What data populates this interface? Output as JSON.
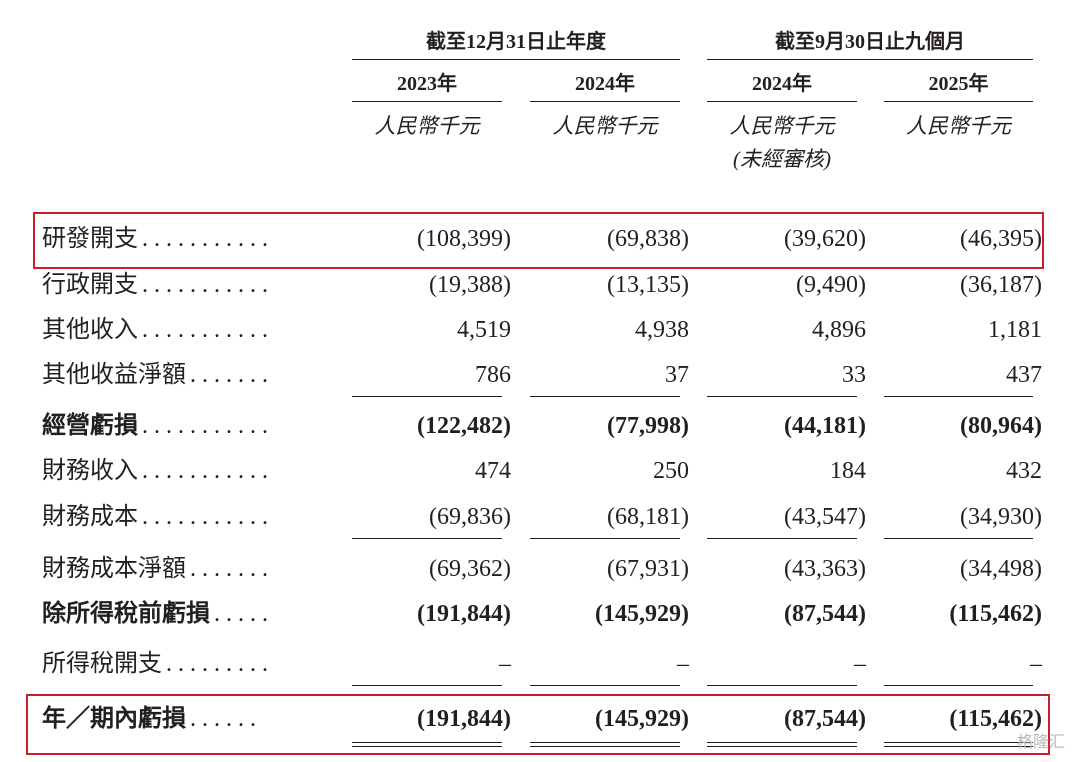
{
  "header": {
    "groups": [
      {
        "label": "截至12月31日止年度"
      },
      {
        "label": "截至9月30日止九個月"
      }
    ],
    "columns": [
      {
        "year": "2023年",
        "unit": "人民幣千元"
      },
      {
        "year": "2024年",
        "unit": "人民幣千元"
      },
      {
        "year": "2024年",
        "unit": "人民幣千元",
        "note": "(未經審核)"
      },
      {
        "year": "2025年",
        "unit": "人民幣千元"
      }
    ]
  },
  "rows": [
    {
      "label": "研發開支",
      "leader": ". . . . . . . . . . .",
      "values": [
        "(108,399)",
        "(69,838)",
        "(39,620)",
        "(46,395)"
      ],
      "bold": false,
      "highlight": true
    },
    {
      "label": "行政開支",
      "leader": ". . . . . . . . . . .",
      "values": [
        "(19,388)",
        "(13,135)",
        "(9,490)",
        "(36,187)"
      ],
      "bold": false
    },
    {
      "label": "其他收入",
      "leader": ". . . . . . . . . . .",
      "values": [
        "4,519",
        "4,938",
        "4,896",
        "1,181"
      ],
      "bold": false
    },
    {
      "label": "其他收益淨額",
      "leader": ". . . . . . .",
      "values": [
        "786",
        "37",
        "33",
        "437"
      ],
      "bold": false,
      "rule": true
    },
    {
      "label": "經營虧損",
      "leader": ". . . . . . . . . . .",
      "values": [
        "(122,482)",
        "(77,998)",
        "(44,181)",
        "(80,964)"
      ],
      "bold": true
    },
    {
      "label": "財務收入",
      "leader": ". . . . . . . . . . .",
      "values": [
        "474",
        "250",
        "184",
        "432"
      ],
      "bold": false
    },
    {
      "label": "財務成本",
      "leader": ". . . . . . . . . . .",
      "values": [
        "(69,836)",
        "(68,181)",
        "(43,547)",
        "(34,930)"
      ],
      "bold": false,
      "rule": true
    },
    {
      "label": "財務成本淨額",
      "leader": ". . . . . . .",
      "values": [
        "(69,362)",
        "(67,931)",
        "(43,363)",
        "(34,498)"
      ],
      "bold": false
    },
    {
      "label": "除所得稅前虧損",
      "leader": ". . . . .",
      "values": [
        "(191,844)",
        "(145,929)",
        "(87,544)",
        "(115,462)"
      ],
      "bold": true
    },
    {
      "label": "所得稅開支",
      "leader": ". . . . . . . . .",
      "values": [
        "–",
        "–",
        "–",
        "–"
      ],
      "bold": false,
      "rule": true
    },
    {
      "label": "年／期內虧損",
      "leader": ". . . . . .",
      "values": [
        "(191,844)",
        "(145,929)",
        "(87,544)",
        "(115,462)"
      ],
      "bold": true,
      "highlight": true,
      "double": true
    }
  ],
  "watermark": "格隆汇"
}
